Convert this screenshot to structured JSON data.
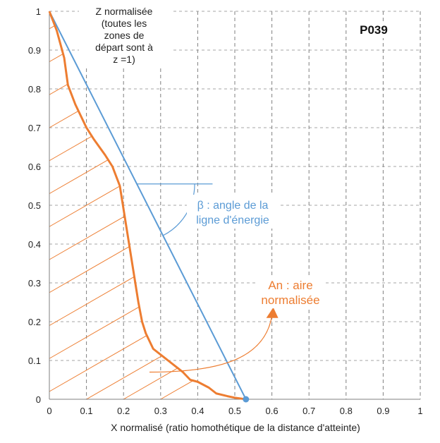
{
  "chart_data": {
    "type": "line",
    "title": "",
    "panel_id": "P039",
    "xlabel": "X normalisé  (ratio homothétique  de la distance d'atteinte)",
    "ylabel_lines": [
      "Z normalisée",
      "(toutes les",
      "zones de",
      "départ sont à",
      "z =1)"
    ],
    "xlim": [
      0,
      1
    ],
    "ylim": [
      0,
      1
    ],
    "xticks": [
      "0",
      "0.1",
      "0.2",
      "0.3",
      "0.4",
      "0.5",
      "0.6",
      "0.7",
      "0.8",
      "0.9",
      "1"
    ],
    "yticks": [
      "0",
      "0.1",
      "0.2",
      "0.3",
      "0.4",
      "0.5",
      "0.6",
      "0.7",
      "0.8",
      "0.9",
      "1"
    ],
    "grid": "vertical dashed, horizontal dashed",
    "series": [
      {
        "color": "#ED7D31",
        "x": [
          0,
          0.02,
          0.04,
          0.05,
          0.07,
          0.1,
          0.12,
          0.15,
          0.17,
          0.19,
          0.2,
          0.21,
          0.22,
          0.23,
          0.24,
          0.25,
          0.26,
          0.28,
          0.32,
          0.36,
          0.38,
          0.4,
          0.43,
          0.45,
          0.48,
          0.5,
          0.53
        ],
        "y": [
          1,
          0.95,
          0.88,
          0.81,
          0.76,
          0.7,
          0.67,
          0.63,
          0.6,
          0.55,
          0.49,
          0.43,
          0.37,
          0.31,
          0.25,
          0.2,
          0.17,
          0.13,
          0.1,
          0.07,
          0.05,
          0.045,
          0.03,
          0.015,
          0.008,
          0.004,
          0
        ]
      },
      {
        "color": "#5B9BD5",
        "x": [
          0,
          0.53
        ],
        "y": [
          1,
          0
        ]
      }
    ],
    "annotations": {
      "beta_label_lines": [
        "β : angle de la",
        "ligne d'énergie"
      ],
      "area_label_lines": [
        "An : aire",
        "normalisée"
      ]
    },
    "colors": {
      "orange": "#ED7D31",
      "blue": "#5B9BD5",
      "grid": "#a6a6a6"
    }
  }
}
